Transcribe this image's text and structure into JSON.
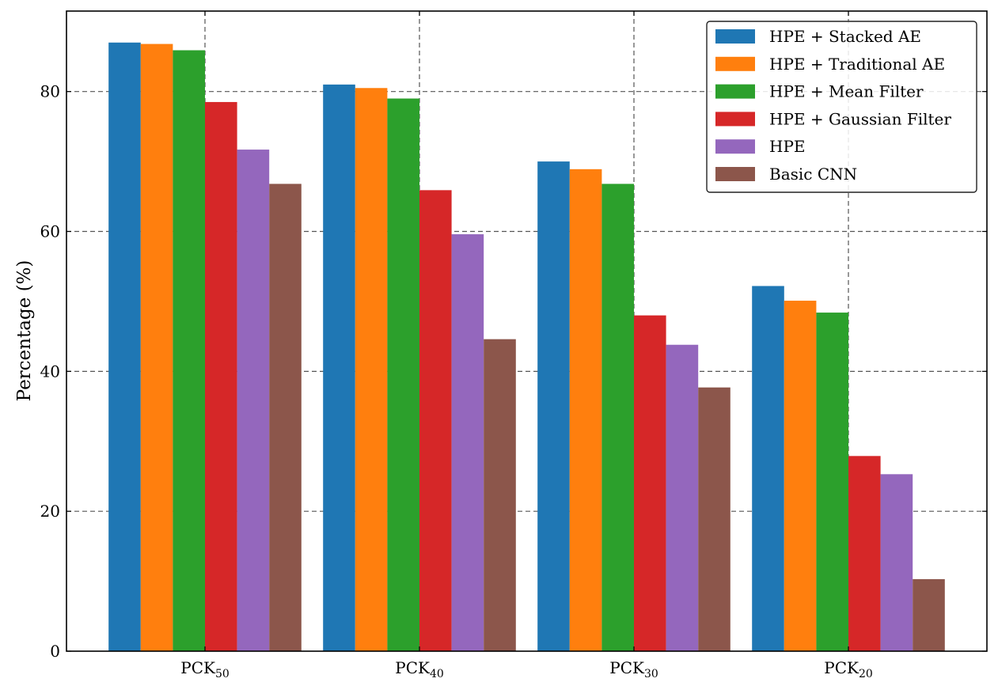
{
  "chart_data": {
    "type": "bar",
    "title": "",
    "xlabel": "",
    "ylabel": "Percentage (%)",
    "ylim": [
      0,
      91.5
    ],
    "yticks": [
      0,
      20,
      40,
      60,
      80
    ],
    "grid": true,
    "legend_position": "top-right",
    "categories": [
      {
        "base": "PCK",
        "sub": "50"
      },
      {
        "base": "PCK",
        "sub": "40"
      },
      {
        "base": "PCK",
        "sub": "30"
      },
      {
        "base": "PCK",
        "sub": "20"
      }
    ],
    "series": [
      {
        "name": "HPE + Stacked AE",
        "color": "#1f77b4",
        "values": [
          87.0,
          81.0,
          70.0,
          52.2
        ]
      },
      {
        "name": "HPE + Traditional AE",
        "color": "#ff7f0e",
        "values": [
          86.8,
          80.5,
          68.9,
          50.1
        ]
      },
      {
        "name": "HPE + Mean Filter",
        "color": "#2ca02c",
        "values": [
          85.9,
          79.0,
          66.8,
          48.4
        ]
      },
      {
        "name": "HPE + Gaussian Filter",
        "color": "#d62728",
        "values": [
          78.5,
          65.9,
          48.0,
          27.9
        ]
      },
      {
        "name": "HPE",
        "color": "#9467bd",
        "values": [
          71.7,
          59.6,
          43.8,
          25.3
        ]
      },
      {
        "name": "Basic CNN",
        "color": "#8c564b",
        "values": [
          66.8,
          44.6,
          37.7,
          10.3
        ]
      }
    ]
  }
}
